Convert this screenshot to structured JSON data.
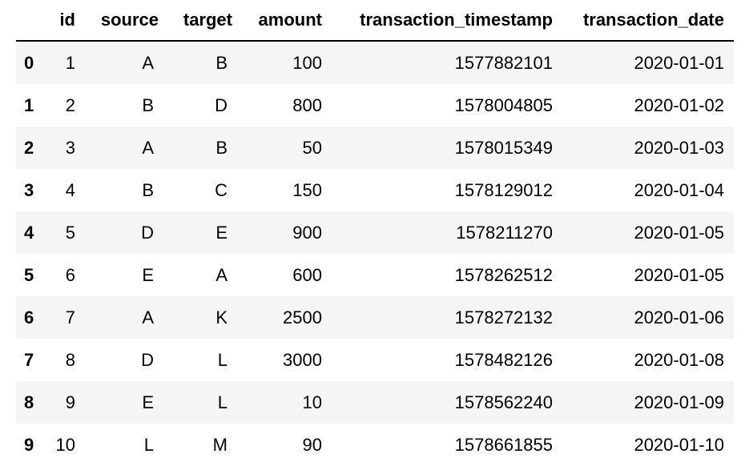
{
  "table": {
    "index_header": "",
    "columns": [
      "id",
      "source",
      "target",
      "amount",
      "transaction_timestamp",
      "transaction_date"
    ],
    "rows": [
      {
        "index": "0",
        "cells": [
          "1",
          "A",
          "B",
          "100",
          "1577882101",
          "2020-01-01"
        ]
      },
      {
        "index": "1",
        "cells": [
          "2",
          "B",
          "D",
          "800",
          "1578004805",
          "2020-01-02"
        ]
      },
      {
        "index": "2",
        "cells": [
          "3",
          "A",
          "B",
          "50",
          "1578015349",
          "2020-01-03"
        ]
      },
      {
        "index": "3",
        "cells": [
          "4",
          "B",
          "C",
          "150",
          "1578129012",
          "2020-01-04"
        ]
      },
      {
        "index": "4",
        "cells": [
          "5",
          "D",
          "E",
          "900",
          "1578211270",
          "2020-01-05"
        ]
      },
      {
        "index": "5",
        "cells": [
          "6",
          "E",
          "A",
          "600",
          "1578262512",
          "2020-01-05"
        ]
      },
      {
        "index": "6",
        "cells": [
          "7",
          "A",
          "K",
          "2500",
          "1578272132",
          "2020-01-06"
        ]
      },
      {
        "index": "7",
        "cells": [
          "8",
          "D",
          "L",
          "3000",
          "1578482126",
          "2020-01-08"
        ]
      },
      {
        "index": "8",
        "cells": [
          "9",
          "E",
          "L",
          "10",
          "1578562240",
          "2020-01-09"
        ]
      },
      {
        "index": "9",
        "cells": [
          "10",
          "L",
          "M",
          "90",
          "1578661855",
          "2020-01-10"
        ]
      }
    ]
  },
  "colors": {
    "stripe": "#f5f5f5",
    "background": "#ffffff",
    "header_rule": "#000000"
  }
}
